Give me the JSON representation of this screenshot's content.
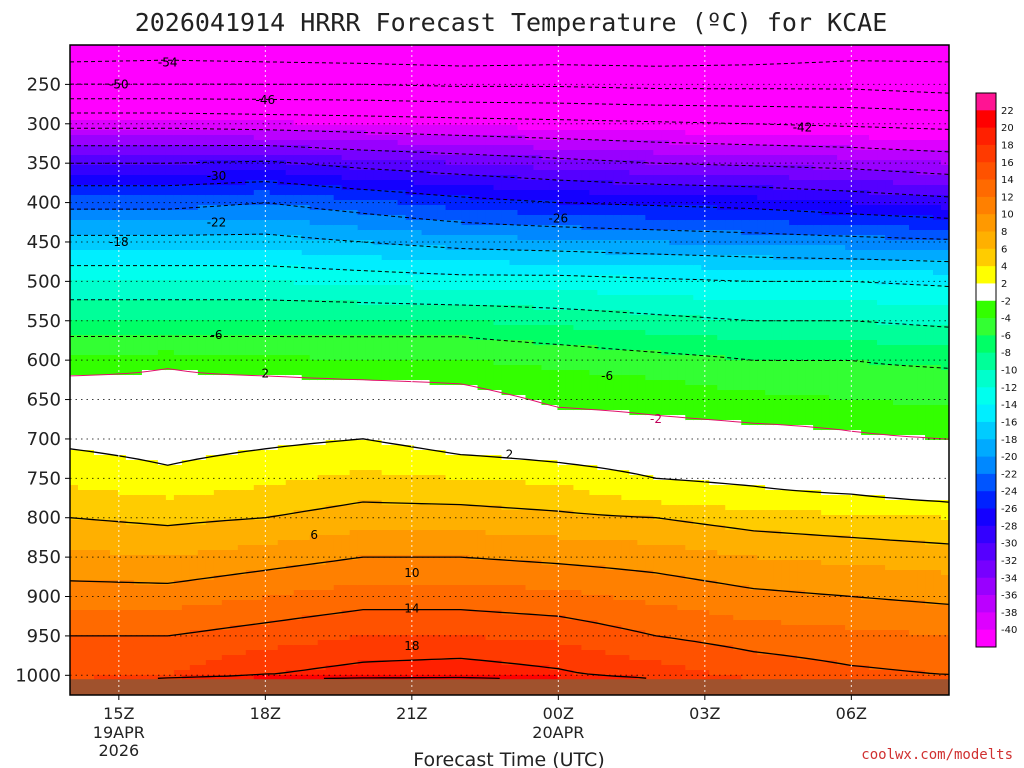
{
  "chart_data": {
    "type": "heatmap",
    "title": "2026041914 HRRR Forecast Temperature (ºC) for KCAE",
    "xlabel": "Forecast Time (UTC)",
    "ylabel": "",
    "credit": "coolwx.com/modelts",
    "y_axis": {
      "quantity": "pressure (hPa)",
      "inverted": true,
      "range": [
        200,
        1025
      ],
      "ticks": [
        250,
        300,
        350,
        400,
        450,
        500,
        550,
        600,
        650,
        700,
        750,
        800,
        850,
        900,
        950,
        1000
      ]
    },
    "x_axis": {
      "quantity": "forecast valid time (UTC)",
      "range": [
        "2026-04-19 14:00",
        "2026-04-20 08:00"
      ],
      "ticks": [
        {
          "time": "2026-04-19 15:00",
          "label": "15Z",
          "sub": [
            "19APR",
            "2026"
          ]
        },
        {
          "time": "2026-04-19 18:00",
          "label": "18Z",
          "sub": []
        },
        {
          "time": "2026-04-19 21:00",
          "label": "21Z",
          "sub": []
        },
        {
          "time": "2026-04-20 00:00",
          "label": "00Z",
          "sub": [
            "20APR"
          ]
        },
        {
          "time": "2026-04-20 03:00",
          "label": "03Z",
          "sub": []
        },
        {
          "time": "2026-04-20 06:00",
          "label": "06Z",
          "sub": []
        }
      ]
    },
    "grid": true,
    "ground_color": "#a0522d",
    "surface_pressure": 1005,
    "times": [
      "2026-04-19 14:00",
      "2026-04-19 16:00",
      "2026-04-19 18:00",
      "2026-04-19 20:00",
      "2026-04-19 22:00",
      "2026-04-20 00:00",
      "2026-04-20 02:00",
      "2026-04-20 04:00",
      "2026-04-20 06:00",
      "2026-04-20 08:00"
    ],
    "profiles": [
      {
        "time": "2026-04-19 14:00",
        "points": [
          [
            1005,
            16
          ],
          [
            1000,
            15
          ],
          [
            950,
            14
          ],
          [
            900,
            11
          ],
          [
            850,
            8.5
          ],
          [
            800,
            6
          ],
          [
            750,
            3.5
          ],
          [
            700,
            1.5
          ],
          [
            650,
            -0.5
          ],
          [
            620,
            -2
          ],
          [
            600,
            -3.5
          ],
          [
            570,
            -6
          ],
          [
            500,
            -12
          ],
          [
            450,
            -17
          ],
          [
            400,
            -23
          ],
          [
            350,
            -30
          ],
          [
            300,
            -39
          ],
          [
            250,
            -50
          ],
          [
            200,
            -57
          ]
        ]
      },
      {
        "time": "2026-04-19 16:00",
        "points": [
          [
            1005,
            19
          ],
          [
            1000,
            16
          ],
          [
            950,
            14
          ],
          [
            900,
            11
          ],
          [
            850,
            8
          ],
          [
            800,
            5.5
          ],
          [
            750,
            2.5
          ],
          [
            700,
            1
          ],
          [
            650,
            -1
          ],
          [
            610,
            -2
          ],
          [
            600,
            -3
          ],
          [
            570,
            -6
          ],
          [
            500,
            -12
          ],
          [
            450,
            -17
          ],
          [
            400,
            -23
          ],
          [
            350,
            -30
          ],
          [
            300,
            -39
          ],
          [
            250,
            -50
          ],
          [
            200,
            -56.5
          ]
        ]
      },
      {
        "time": "2026-04-19 18:00",
        "points": [
          [
            1005,
            22
          ],
          [
            1000,
            18
          ],
          [
            950,
            15
          ],
          [
            900,
            12
          ],
          [
            850,
            9
          ],
          [
            800,
            6
          ],
          [
            750,
            3.5
          ],
          [
            700,
            1.5
          ],
          [
            650,
            0
          ],
          [
            620,
            -2
          ],
          [
            600,
            -3.5
          ],
          [
            570,
            -6
          ],
          [
            500,
            -12
          ],
          [
            450,
            -17
          ],
          [
            400,
            -22
          ],
          [
            350,
            -29.5
          ],
          [
            300,
            -39.5
          ],
          [
            250,
            -50
          ],
          [
            200,
            -57
          ]
        ]
      },
      {
        "time": "2026-04-19 20:00",
        "points": [
          [
            1005,
            23.5
          ],
          [
            1000,
            19
          ],
          [
            950,
            16
          ],
          [
            900,
            13
          ],
          [
            850,
            10
          ],
          [
            800,
            7
          ],
          [
            750,
            4.5
          ],
          [
            700,
            2
          ],
          [
            650,
            0
          ],
          [
            625,
            -2
          ],
          [
            600,
            -4
          ],
          [
            570,
            -6
          ],
          [
            500,
            -12.5
          ],
          [
            450,
            -18
          ],
          [
            400,
            -23.5
          ],
          [
            350,
            -31
          ],
          [
            300,
            -40
          ],
          [
            250,
            -50
          ],
          [
            200,
            -57.5
          ]
        ]
      },
      {
        "time": "2026-04-19 22:00",
        "points": [
          [
            1005,
            24
          ],
          [
            1000,
            19.5
          ],
          [
            950,
            16
          ],
          [
            900,
            13
          ],
          [
            850,
            10
          ],
          [
            800,
            7
          ],
          [
            750,
            4
          ],
          [
            720,
            2
          ],
          [
            700,
            1
          ],
          [
            650,
            -1
          ],
          [
            630,
            -2
          ],
          [
            600,
            -4
          ],
          [
            570,
            -6
          ],
          [
            500,
            -13
          ],
          [
            450,
            -19
          ],
          [
            400,
            -25
          ],
          [
            350,
            -32
          ],
          [
            300,
            -40.5
          ],
          [
            250,
            -50.5
          ],
          [
            200,
            -58
          ]
        ]
      },
      {
        "time": "2026-04-20 00:00",
        "points": [
          [
            1005,
            21
          ],
          [
            1000,
            18.5
          ],
          [
            950,
            15.5
          ],
          [
            900,
            12.5
          ],
          [
            850,
            9.5
          ],
          [
            800,
            6.5
          ],
          [
            750,
            3.5
          ],
          [
            730,
            2
          ],
          [
            700,
            0.5
          ],
          [
            660,
            -2
          ],
          [
            600,
            -4.5
          ],
          [
            580,
            -6
          ],
          [
            500,
            -13
          ],
          [
            450,
            -19.5
          ],
          [
            400,
            -26
          ],
          [
            350,
            -33
          ],
          [
            300,
            -41
          ],
          [
            250,
            -50.5
          ],
          [
            200,
            -57.5
          ]
        ]
      },
      {
        "time": "2026-04-20 02:00",
        "points": [
          [
            1005,
            18
          ],
          [
            1000,
            17
          ],
          [
            950,
            14
          ],
          [
            900,
            11.5
          ],
          [
            850,
            9
          ],
          [
            800,
            6
          ],
          [
            770,
            3
          ],
          [
            750,
            2
          ],
          [
            700,
            -0.5
          ],
          [
            670,
            -2
          ],
          [
            600,
            -5
          ],
          [
            590,
            -6
          ],
          [
            500,
            -13.5
          ],
          [
            450,
            -20
          ],
          [
            400,
            -26.5
          ],
          [
            350,
            -34
          ],
          [
            300,
            -41.5
          ],
          [
            250,
            -51
          ],
          [
            200,
            -57.5
          ]
        ]
      },
      {
        "time": "2026-04-20 04:00",
        "points": [
          [
            1005,
            16
          ],
          [
            1000,
            15.5
          ],
          [
            950,
            13
          ],
          [
            900,
            10.5
          ],
          [
            850,
            8
          ],
          [
            800,
            5
          ],
          [
            780,
            3
          ],
          [
            760,
            2
          ],
          [
            700,
            -0.5
          ],
          [
            680,
            -2
          ],
          [
            640,
            -4
          ],
          [
            600,
            -6
          ],
          [
            500,
            -14
          ],
          [
            450,
            -20.5
          ],
          [
            400,
            -27
          ],
          [
            350,
            -34.5
          ],
          [
            300,
            -42
          ],
          [
            250,
            -51
          ],
          [
            200,
            -57
          ]
        ]
      },
      {
        "time": "2026-04-20 06:00",
        "points": [
          [
            1005,
            15.5
          ],
          [
            1000,
            14.5
          ],
          [
            950,
            12.5
          ],
          [
            900,
            10
          ],
          [
            850,
            7.5
          ],
          [
            800,
            4.5
          ],
          [
            780,
            2.5
          ],
          [
            770,
            2
          ],
          [
            740,
            -0.5
          ],
          [
            690,
            -2
          ],
          [
            650,
            -4
          ],
          [
            600,
            -6
          ],
          [
            500,
            -14
          ],
          [
            450,
            -21
          ],
          [
            400,
            -28
          ],
          [
            350,
            -35
          ],
          [
            300,
            -42.5
          ],
          [
            250,
            -51
          ],
          [
            200,
            -56
          ]
        ]
      },
      {
        "time": "2026-04-20 08:00",
        "points": [
          [
            1005,
            15
          ],
          [
            1000,
            14
          ],
          [
            950,
            12
          ],
          [
            900,
            9.5
          ],
          [
            850,
            7
          ],
          [
            800,
            4
          ],
          [
            790,
            2.5
          ],
          [
            780,
            2
          ],
          [
            745,
            -0.5
          ],
          [
            700,
            -2
          ],
          [
            660,
            -4
          ],
          [
            610,
            -6
          ],
          [
            500,
            -14.5
          ],
          [
            450,
            -21.5
          ],
          [
            400,
            -29
          ],
          [
            350,
            -36
          ],
          [
            300,
            -43
          ],
          [
            250,
            -52
          ],
          [
            200,
            -55.5
          ]
        ]
      }
    ],
    "contour_levels": [
      -54,
      -50,
      -46,
      -42,
      -38,
      -34,
      -30,
      -26,
      -22,
      -18,
      -14,
      -10,
      -6,
      -2,
      2,
      6,
      10,
      14,
      18,
      22
    ],
    "contour_labels": [
      {
        "text": "-54",
        "time": "2026-04-19 16:00",
        "p": 222
      },
      {
        "text": "-50",
        "time": "2026-04-19 15:00",
        "p": 250
      },
      {
        "text": "-46",
        "time": "2026-04-19 18:00",
        "p": 270
      },
      {
        "text": "-42",
        "time": "2026-04-20 05:00",
        "p": 305
      },
      {
        "text": "-30",
        "time": "2026-04-19 17:00",
        "p": 366
      },
      {
        "text": "-26",
        "time": "2026-04-20 00:00",
        "p": 420
      },
      {
        "text": "-22",
        "time": "2026-04-19 17:00",
        "p": 425
      },
      {
        "text": "-18",
        "time": "2026-04-19 15:00",
        "p": 450
      },
      {
        "text": "-6",
        "time": "2026-04-19 17:00",
        "p": 568
      },
      {
        "text": "-6",
        "time": "2026-04-20 01:00",
        "p": 620
      },
      {
        "text": "-2",
        "time": "2026-04-20 02:00",
        "p": 675
      },
      {
        "text": "2",
        "time": "2026-04-19 18:00",
        "p": 617
      },
      {
        "text": "2",
        "time": "2026-04-19 23:00",
        "p": 720
      },
      {
        "text": "6",
        "time": "2026-04-19 19:00",
        "p": 822
      },
      {
        "text": "10",
        "time": "2026-04-19 21:00",
        "p": 870
      },
      {
        "text": "14",
        "time": "2026-04-19 21:00",
        "p": 915
      },
      {
        "text": "18",
        "time": "2026-04-19 21:00",
        "p": 963
      }
    ],
    "colorbar": {
      "ticks": [
        22,
        20,
        18,
        16,
        14,
        12,
        10,
        8,
        6,
        4,
        2,
        -2,
        -4,
        -6,
        -8,
        -10,
        -12,
        -14,
        -16,
        -18,
        -20,
        -22,
        -24,
        -26,
        -28,
        -30,
        -32,
        -34,
        -36,
        -38,
        -40
      ],
      "bins": [
        {
          "lo": 22,
          "hi": 24,
          "color": "#ff1493"
        },
        {
          "lo": 20,
          "hi": 22,
          "color": "#ff0000"
        },
        {
          "lo": 18,
          "hi": 20,
          "color": "#ff2000"
        },
        {
          "lo": 16,
          "hi": 18,
          "color": "#ff3a00"
        },
        {
          "lo": 14,
          "hi": 16,
          "color": "#ff5200"
        },
        {
          "lo": 12,
          "hi": 14,
          "color": "#ff6a00"
        },
        {
          "lo": 10,
          "hi": 12,
          "color": "#ff8000"
        },
        {
          "lo": 8,
          "hi": 10,
          "color": "#ff9900"
        },
        {
          "lo": 6,
          "hi": 8,
          "color": "#ffb000"
        },
        {
          "lo": 4,
          "hi": 6,
          "color": "#ffcc00"
        },
        {
          "lo": 2,
          "hi": 4,
          "color": "#ffff00"
        },
        {
          "lo": -2,
          "hi": 2,
          "color": "#ffffff"
        },
        {
          "lo": -4,
          "hi": -2,
          "color": "#33ff00"
        },
        {
          "lo": -6,
          "hi": -4,
          "color": "#33ff33"
        },
        {
          "lo": -8,
          "hi": -6,
          "color": "#00ff66"
        },
        {
          "lo": -10,
          "hi": -8,
          "color": "#00ff99"
        },
        {
          "lo": -12,
          "hi": -10,
          "color": "#00ffcc"
        },
        {
          "lo": -14,
          "hi": -12,
          "color": "#00ffee"
        },
        {
          "lo": -16,
          "hi": -14,
          "color": "#00eeff"
        },
        {
          "lo": -18,
          "hi": -16,
          "color": "#00ccff"
        },
        {
          "lo": -20,
          "hi": -18,
          "color": "#00aaff"
        },
        {
          "lo": -22,
          "hi": -20,
          "color": "#0088ff"
        },
        {
          "lo": -24,
          "hi": -22,
          "color": "#0055ff"
        },
        {
          "lo": -26,
          "hi": -24,
          "color": "#0022ff"
        },
        {
          "lo": -28,
          "hi": -26,
          "color": "#1400ff"
        },
        {
          "lo": -30,
          "hi": -28,
          "color": "#3300ff"
        },
        {
          "lo": -32,
          "hi": -30,
          "color": "#5500ff"
        },
        {
          "lo": -34,
          "hi": -32,
          "color": "#7700ff"
        },
        {
          "lo": -36,
          "hi": -34,
          "color": "#9900ff"
        },
        {
          "lo": -38,
          "hi": -36,
          "color": "#bb00ff"
        },
        {
          "lo": -40,
          "hi": -38,
          "color": "#dd00ff"
        },
        {
          "lo": -70,
          "hi": -40,
          "color": "#ff00ff"
        }
      ]
    }
  }
}
